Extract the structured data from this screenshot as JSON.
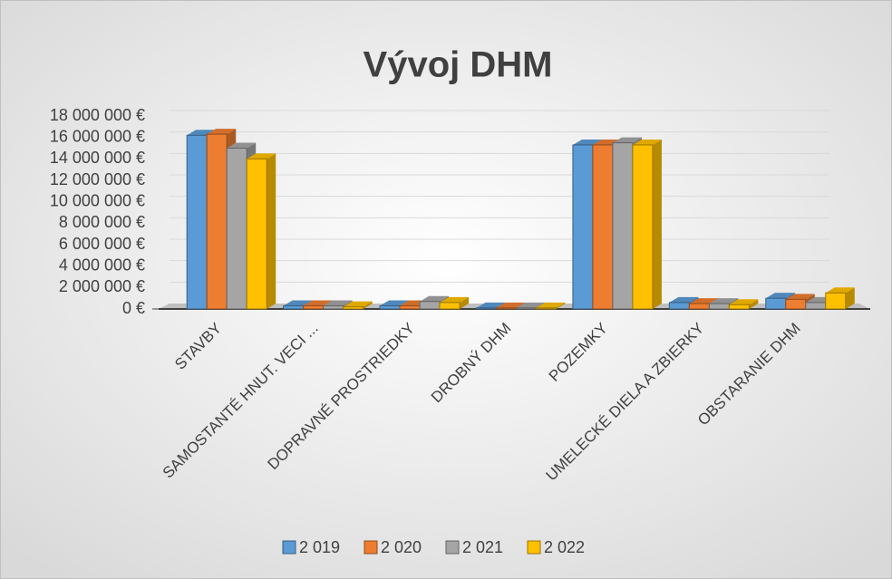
{
  "chart_data": {
    "type": "bar",
    "title": "Vývoj DHM",
    "categories": [
      "STAVBY",
      "SAMOSTANTÉ HNUT. VECI ...",
      "DOPRAVNÉ PROSTRIEDKY",
      "DROBNÝ DHM",
      "POZEMKY",
      "UMELECKÉ DIELA A ZBIERKY",
      "OBSTARANIE DHM"
    ],
    "series": [
      {
        "name": "2 019",
        "color": "#5b9bd5",
        "values": [
          16200000,
          300000,
          300000,
          100000,
          15300000,
          600000,
          1000000
        ]
      },
      {
        "name": "2 020",
        "color": "#ed7d31",
        "values": [
          16300000,
          300000,
          300000,
          100000,
          15300000,
          500000,
          900000
        ]
      },
      {
        "name": "2 021",
        "color": "#a5a5a5",
        "values": [
          15000000,
          300000,
          700000,
          100000,
          15500000,
          500000,
          600000
        ]
      },
      {
        "name": "2 022",
        "color": "#ffc000",
        "values": [
          14000000,
          200000,
          600000,
          100000,
          15300000,
          400000,
          1500000
        ]
      }
    ],
    "ylim": [
      0,
      18000000
    ],
    "yticks": [
      {
        "value": 0,
        "label": "0 €"
      },
      {
        "value": 2000000,
        "label": "2 000 000 €"
      },
      {
        "value": 4000000,
        "label": "4 000 000 €"
      },
      {
        "value": 6000000,
        "label": "6 000 000 €"
      },
      {
        "value": 8000000,
        "label": "8 000 000 €"
      },
      {
        "value": 10000000,
        "label": "10 000 000 €"
      },
      {
        "value": 12000000,
        "label": "12 000 000 €"
      },
      {
        "value": 14000000,
        "label": "14 000 000 €"
      },
      {
        "value": 16000000,
        "label": "16 000 000 €"
      },
      {
        "value": 18000000,
        "label": "18 000 000 €"
      }
    ],
    "grid": true,
    "legend": "bottom"
  }
}
